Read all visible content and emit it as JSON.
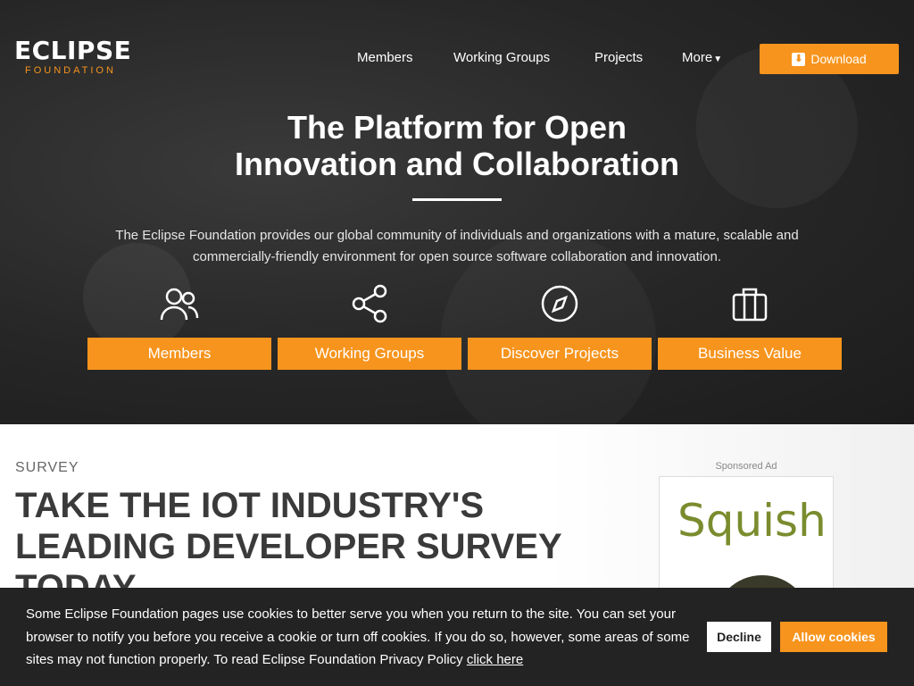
{
  "header": {
    "logo": {
      "name": "ECLIPSE",
      "sub": "FOUNDATION"
    },
    "nav": {
      "members": "Members",
      "working_groups": "Working Groups",
      "projects": "Projects",
      "more": "More"
    },
    "download_label": "Download"
  },
  "hero": {
    "title_line1": "The Platform for Open",
    "title_line2": "Innovation and Collaboration",
    "description": "The Eclipse Foundation provides our global community of individuals and organizations with a mature, scalable and commercially-friendly environment for open source software collaboration and innovation.",
    "features": [
      {
        "icon": "members-icon",
        "label": "Members"
      },
      {
        "icon": "share-icon",
        "label": "Working Groups"
      },
      {
        "icon": "compass-icon",
        "label": "Discover Projects"
      },
      {
        "icon": "briefcase-icon",
        "label": "Business Value"
      }
    ]
  },
  "survey": {
    "label": "SURVEY",
    "title": "TAKE THE IOT INDUSTRY'S LEADING DEVELOPER SURVEY TODAY"
  },
  "ad": {
    "sponsored": "Sponsored Ad",
    "brand": "Squish"
  },
  "cookie": {
    "text": "Some Eclipse Foundation pages use cookies to better serve you when you return to the site. You can set your browser to notify you before you receive a cookie or turn off cookies. If you do so, however, some areas of some sites may not function properly. To read Eclipse Foundation Privacy Policy",
    "link": "click here",
    "decline": "Decline",
    "allow": "Allow cookies"
  },
  "colors": {
    "accent": "#f7941d",
    "hero_bg": "#262626",
    "banner_bg": "#232323"
  }
}
